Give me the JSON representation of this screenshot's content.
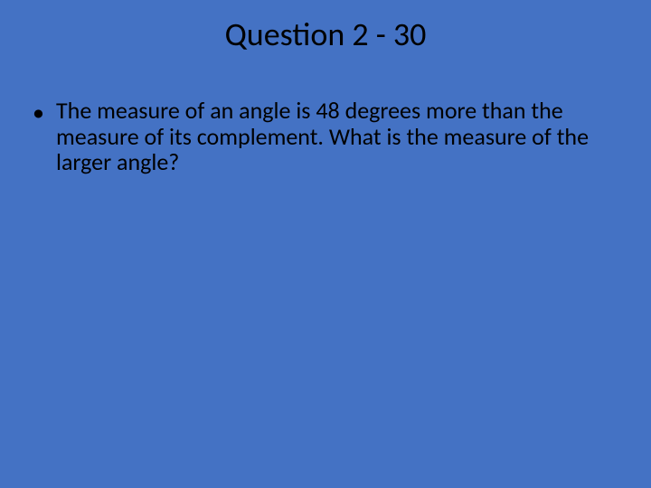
{
  "slide": {
    "title": "Question 2 - 30",
    "bullet_marker": "•",
    "bullets": [
      "The measure of an angle is 48 degrees more than the measure of its complement.  What is the measure of the larger angle?"
    ],
    "background_color": "#4472c4",
    "text_color": "#000000",
    "title_fontsize": 36,
    "body_fontsize": 26,
    "font_family": "Calibri"
  }
}
